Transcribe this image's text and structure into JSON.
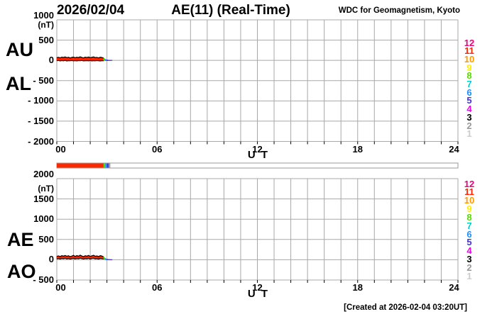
{
  "header": {
    "date": "2026/02/04",
    "title": "AE(11) (Real-Time)",
    "organization": "WDC for Geomagnetism, Kyoto"
  },
  "footer": {
    "created_note": "[Created at 2026-02-04 03:20UT]"
  },
  "station_colors": {
    "12": "#e6007e",
    "11": "#ff2600",
    "10": "#ff9900",
    "9": "#ffee00",
    "8": "#55dd00",
    "7": "#00cccc",
    "6": "#1e90ff",
    "5": "#4433cc",
    "4": "#ee00ee",
    "3": "#000000",
    "2": "#999999",
    "1": "#cccccc"
  },
  "station_legend": [
    {
      "label": "12",
      "color_key": "12"
    },
    {
      "label": "11",
      "color_key": "11"
    },
    {
      "label": "10",
      "color_key": "10"
    },
    {
      "label": "9",
      "color_key": "9"
    },
    {
      "label": "8",
      "color_key": "8"
    },
    {
      "label": "7",
      "color_key": "7"
    },
    {
      "label": "6",
      "color_key": "6"
    },
    {
      "label": "5",
      "color_key": "5"
    },
    {
      "label": "4",
      "color_key": "4"
    },
    {
      "label": "3",
      "color_key": "3"
    },
    {
      "label": "2",
      "color_key": "2"
    },
    {
      "label": "1",
      "color_key": "1"
    }
  ],
  "chart_data": [
    {
      "type": "area",
      "left_labels": {
        "upper": "AU",
        "lower": "AL"
      },
      "unit": "(nT)",
      "ylim": [
        -2000,
        1000
      ],
      "ytick_step": 500,
      "yticks": [
        {
          "value": 1000,
          "label": "1000"
        },
        {
          "value": 500,
          "label": "500"
        },
        {
          "value": 0,
          "label": "0"
        },
        {
          "value": -500,
          "label": "- 500"
        },
        {
          "value": -1000,
          "label": "- 1000"
        },
        {
          "value": -1500,
          "label": "- 1500"
        },
        {
          "value": -2000,
          "label": "- 2000"
        }
      ],
      "x": {
        "range_hours": [
          0,
          24
        ],
        "minor_step_hours": 1,
        "axis_label": "U T",
        "ticks": [
          {
            "hour": 0,
            "label": "00"
          },
          {
            "hour": 6,
            "label": "06"
          },
          {
            "hour": 12,
            "label": "12"
          },
          {
            "hour": 18,
            "label": "18"
          },
          {
            "hour": 24,
            "label": "24"
          }
        ]
      },
      "grid": true,
      "bands": [
        {
          "stations": "11",
          "x0": 0.0,
          "dx": 0.1,
          "upper": [
            68,
            75,
            62,
            80,
            71,
            85,
            66,
            78,
            59,
            73,
            82,
            64,
            77,
            69,
            88,
            72,
            61,
            79,
            70,
            83,
            65,
            76,
            86,
            68,
            74,
            60,
            78,
            71,
            55
          ],
          "lower": [
            -8,
            -3,
            -12,
            -5,
            -10,
            -2,
            -14,
            -6,
            -9,
            -4,
            -11,
            -7,
            -13,
            -5,
            -9,
            -3,
            -12,
            -8,
            -6,
            -10,
            -4,
            -13,
            -7,
            -11,
            -5,
            -9,
            -14,
            -6,
            -8
          ]
        },
        {
          "stations": "8",
          "x0": 2.8,
          "dx": 0.1,
          "upper": [
            55,
            25
          ],
          "lower": [
            -8,
            -6
          ]
        },
        {
          "stations": "6",
          "x0": 2.9,
          "dx": 0.1,
          "upper": [
            25,
            10
          ],
          "lower": [
            -6,
            -5
          ]
        },
        {
          "stations": "5",
          "x0": 3.0,
          "dx": 0.1,
          "upper": [
            10,
            4,
            3,
            2
          ],
          "lower": [
            -5,
            -4,
            -3,
            -2
          ]
        }
      ],
      "outline_color": "#000000"
    },
    {
      "type": "area",
      "left_labels": {
        "upper": "AE",
        "lower": "AO"
      },
      "unit": "(nT)",
      "ylim": [
        -500,
        2000
      ],
      "ytick_step": 500,
      "yticks": [
        {
          "value": 2000,
          "label": "2000"
        },
        {
          "value": 1500,
          "label": "1500"
        },
        {
          "value": 1000,
          "label": "1000"
        },
        {
          "value": 500,
          "label": "500"
        },
        {
          "value": 0,
          "label": "0"
        },
        {
          "value": -500,
          "label": "- 500"
        }
      ],
      "x": {
        "range_hours": [
          0,
          24
        ],
        "minor_step_hours": 1,
        "axis_label": "U T",
        "ticks": [
          {
            "hour": 0,
            "label": "00"
          },
          {
            "hour": 6,
            "label": "06"
          },
          {
            "hour": 12,
            "label": "12"
          },
          {
            "hour": 18,
            "label": "18"
          },
          {
            "hour": 24,
            "label": "24"
          }
        ]
      },
      "grid": true,
      "bands": [
        {
          "stations": "11",
          "x0": 0.0,
          "dx": 0.1,
          "upper": [
            82,
            95,
            78,
            100,
            88,
            105,
            85,
            98,
            75,
            90,
            108,
            80,
            102,
            86,
            112,
            92,
            76,
            99,
            88,
            106,
            82,
            96,
            110,
            85,
            94,
            78,
            100,
            90,
            70
          ],
          "lower": [
            22,
            30,
            18,
            33,
            25,
            36,
            20,
            31,
            15,
            28,
            34,
            21,
            32,
            24,
            38,
            28,
            17,
            31,
            25,
            35,
            19,
            32,
            36,
            23,
            29,
            16,
            33,
            26,
            20
          ]
        },
        {
          "stations": "8",
          "x0": 2.8,
          "dx": 0.1,
          "upper": [
            70,
            30
          ],
          "lower": [
            20,
            5
          ]
        },
        {
          "stations": "6",
          "x0": 2.9,
          "dx": 0.1,
          "upper": [
            30,
            12
          ],
          "lower": [
            5,
            2
          ]
        },
        {
          "stations": "5",
          "x0": 3.0,
          "dx": 0.1,
          "upper": [
            12,
            6,
            4,
            3
          ],
          "lower": [
            2,
            0,
            -1,
            -1
          ]
        }
      ],
      "outline_color": "#000000"
    },
    {
      "type": "availability-bar",
      "range_hours": [
        0,
        24
      ],
      "segments": [
        {
          "start": 0.0,
          "end": 2.8,
          "stations": "11"
        },
        {
          "start": 2.8,
          "end": 2.9,
          "stations": "8"
        },
        {
          "start": 2.9,
          "end": 3.0,
          "stations": "6"
        },
        {
          "start": 3.0,
          "end": 3.1,
          "stations": "5"
        },
        {
          "start": 3.1,
          "end": 3.2,
          "stations": "2"
        }
      ]
    }
  ]
}
